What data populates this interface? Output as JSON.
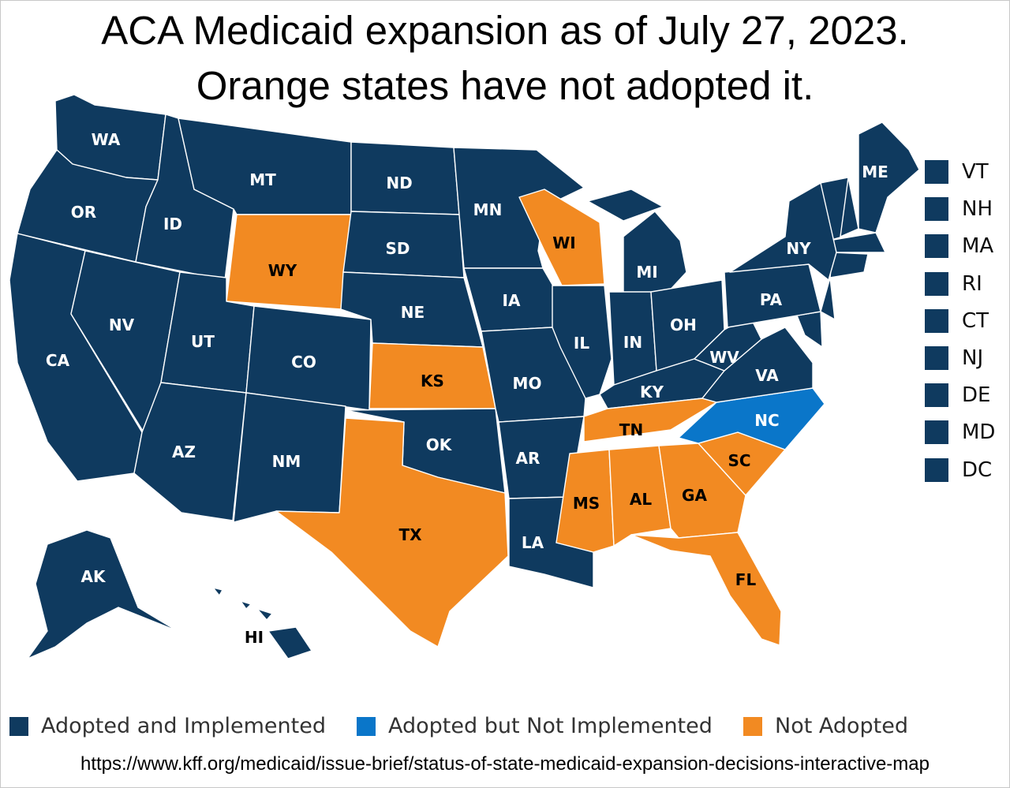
{
  "title": {
    "line1": "ACA Medicaid expansion as of July 27, 2023.",
    "line2": "Orange states have not adopted it."
  },
  "colors": {
    "adopted_implemented": "#0f3a5f",
    "adopted_not_implemented": "#0a76c9",
    "not_adopted": "#f28a22"
  },
  "states": [
    {
      "abbr": "WA",
      "status": "adopted_implemented"
    },
    {
      "abbr": "OR",
      "status": "adopted_implemented"
    },
    {
      "abbr": "CA",
      "status": "adopted_implemented"
    },
    {
      "abbr": "ID",
      "status": "adopted_implemented"
    },
    {
      "abbr": "NV",
      "status": "adopted_implemented"
    },
    {
      "abbr": "MT",
      "status": "adopted_implemented"
    },
    {
      "abbr": "WY",
      "status": "not_adopted"
    },
    {
      "abbr": "UT",
      "status": "adopted_implemented"
    },
    {
      "abbr": "AZ",
      "status": "adopted_implemented"
    },
    {
      "abbr": "CO",
      "status": "adopted_implemented"
    },
    {
      "abbr": "NM",
      "status": "adopted_implemented"
    },
    {
      "abbr": "ND",
      "status": "adopted_implemented"
    },
    {
      "abbr": "SD",
      "status": "adopted_implemented"
    },
    {
      "abbr": "NE",
      "status": "adopted_implemented"
    },
    {
      "abbr": "KS",
      "status": "not_adopted"
    },
    {
      "abbr": "OK",
      "status": "adopted_implemented"
    },
    {
      "abbr": "TX",
      "status": "not_adopted"
    },
    {
      "abbr": "MN",
      "status": "adopted_implemented"
    },
    {
      "abbr": "IA",
      "status": "adopted_implemented"
    },
    {
      "abbr": "MO",
      "status": "adopted_implemented"
    },
    {
      "abbr": "AR",
      "status": "adopted_implemented"
    },
    {
      "abbr": "LA",
      "status": "adopted_implemented"
    },
    {
      "abbr": "WI",
      "status": "not_adopted"
    },
    {
      "abbr": "IL",
      "status": "adopted_implemented"
    },
    {
      "abbr": "MI",
      "status": "adopted_implemented"
    },
    {
      "abbr": "IN",
      "status": "adopted_implemented"
    },
    {
      "abbr": "OH",
      "status": "adopted_implemented"
    },
    {
      "abbr": "KY",
      "status": "adopted_implemented"
    },
    {
      "abbr": "TN",
      "status": "not_adopted"
    },
    {
      "abbr": "MS",
      "status": "not_adopted"
    },
    {
      "abbr": "AL",
      "status": "not_adopted"
    },
    {
      "abbr": "GA",
      "status": "not_adopted"
    },
    {
      "abbr": "FL",
      "status": "not_adopted"
    },
    {
      "abbr": "SC",
      "status": "not_adopted"
    },
    {
      "abbr": "NC",
      "status": "adopted_not_implemented"
    },
    {
      "abbr": "VA",
      "status": "adopted_implemented"
    },
    {
      "abbr": "WV",
      "status": "adopted_implemented"
    },
    {
      "abbr": "PA",
      "status": "adopted_implemented"
    },
    {
      "abbr": "NY",
      "status": "adopted_implemented"
    },
    {
      "abbr": "ME",
      "status": "adopted_implemented"
    },
    {
      "abbr": "AK",
      "status": "adopted_implemented"
    },
    {
      "abbr": "HI",
      "status": "adopted_implemented"
    }
  ],
  "small_states": [
    "VT",
    "NH",
    "MA",
    "RI",
    "CT",
    "NJ",
    "DE",
    "MD",
    "DC"
  ],
  "legend": [
    {
      "label": "Adopted and Implemented",
      "color": "#0f3a5f"
    },
    {
      "label": "Adopted but Not Implemented",
      "color": "#0a76c9"
    },
    {
      "label": "Not Adopted",
      "color": "#f28a22"
    }
  ],
  "source_url": "https://www.kff.org/medicaid/issue-brief/status-of-state-medicaid-expansion-decisions-interactive-map"
}
